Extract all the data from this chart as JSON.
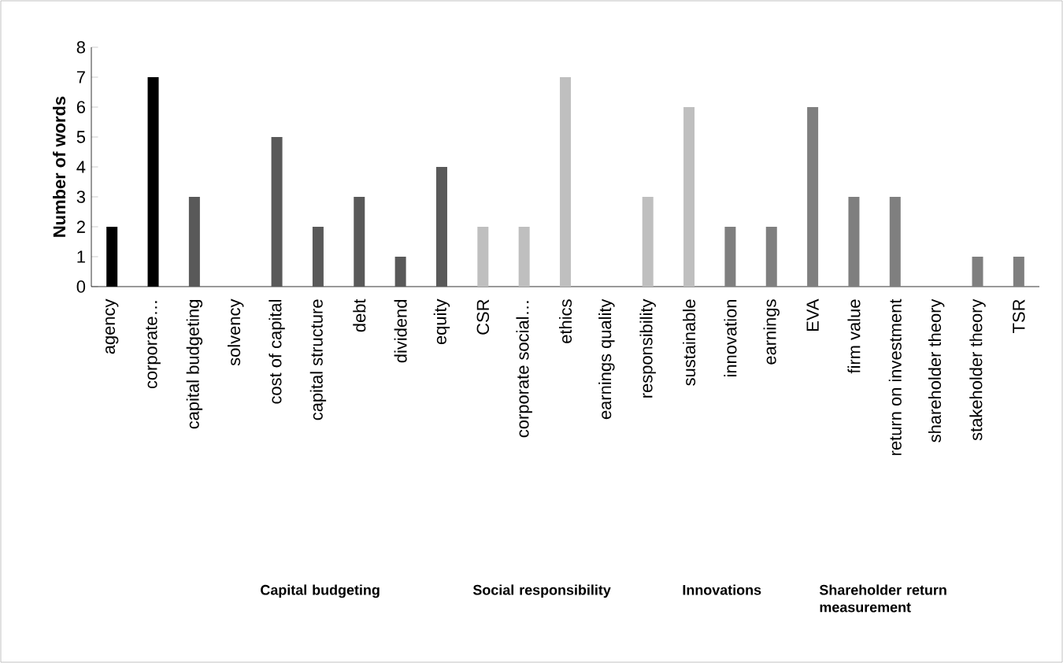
{
  "chart_data": {
    "type": "bar",
    "ylabel": "**Number of words**",
    "categories": [
      "agency",
      "corporate…",
      "capital budgeting",
      "solvency",
      "cost of capital",
      "capital structure",
      "debt",
      "dividend",
      "equity",
      "CSR",
      "corporate social…",
      "ethics",
      "earnings quality",
      "responsibility",
      "sustainable",
      "innovation",
      "earnings",
      "EVA",
      "firm value",
      "return on investment",
      "shareholder theory",
      "stakeholder theory",
      "TSR"
    ],
    "values": [
      2,
      7,
      3,
      0,
      5,
      2,
      3,
      1,
      4,
      2,
      2,
      7,
      0,
      3,
      6,
      2,
      2,
      6,
      3,
      3,
      0,
      1,
      1
    ],
    "colors": [
      "#000000",
      "#000000",
      "#595959",
      "#595959",
      "#595959",
      "#595959",
      "#595959",
      "#595959",
      "#595959",
      "#bfbfbf",
      "#bfbfbf",
      "#bfbfbf",
      "#bfbfbf",
      "#bfbfbf",
      "#bfbfbf",
      "#7f7f7f",
      "#7f7f7f",
      "#7f7f7f",
      "#7f7f7f",
      "#7f7f7f",
      "#7f7f7f",
      "#7f7f7f",
      "#7f7f7f"
    ],
    "ylim": [
      0,
      8
    ],
    "yticks": [
      0,
      1,
      2,
      3,
      4,
      5,
      6,
      7,
      8
    ],
    "grid": false,
    "annotations": [
      "**Capital budgeting**",
      "**Social responsibility**",
      "**Innovations**",
      "**Shareholder return measurement**"
    ]
  }
}
